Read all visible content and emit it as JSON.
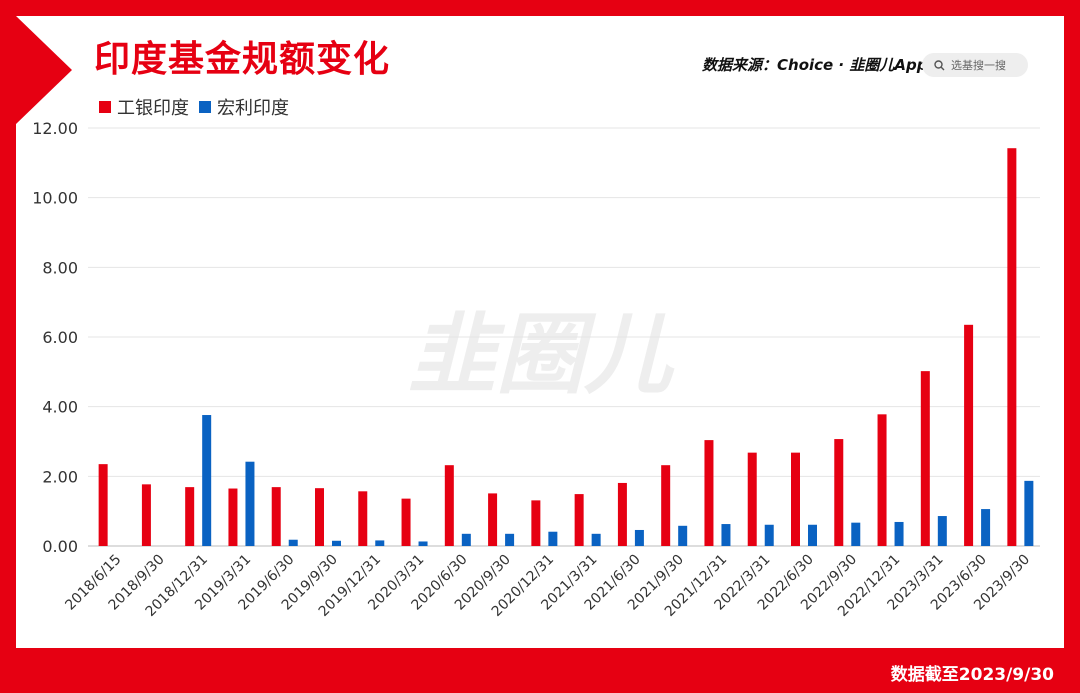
{
  "title": "印度基金规额变化",
  "source_label": "数据来源：Choice · 韭圈儿App",
  "search_placeholder": "选基搜一搜",
  "footer_note": "数据截至2023/9/30",
  "watermark": "韭圈儿",
  "colors": {
    "brand": "#e60012",
    "series1": "#e60012",
    "series2": "#0a62c2"
  },
  "chart_data": {
    "type": "bar",
    "categories": [
      "2018/6/15",
      "2018/9/30",
      "2018/12/31",
      "2019/3/31",
      "2019/6/30",
      "2019/9/30",
      "2019/12/31",
      "2020/3/31",
      "2020/6/30",
      "2020/9/30",
      "2020/12/31",
      "2021/3/31",
      "2021/6/30",
      "2021/9/30",
      "2021/12/31",
      "2022/3/31",
      "2022/6/30",
      "2022/9/30",
      "2022/12/31",
      "2023/3/31",
      "2023/6/30",
      "2023/9/30"
    ],
    "series": [
      {
        "name": "工银印度",
        "values": [
          2.35,
          1.77,
          1.69,
          1.65,
          1.69,
          1.66,
          1.57,
          1.36,
          2.32,
          1.51,
          1.31,
          1.49,
          1.81,
          2.32,
          3.04,
          2.68,
          2.68,
          3.07,
          3.78,
          5.02,
          6.35,
          11.42
        ]
      },
      {
        "name": "宏利印度",
        "values": [
          null,
          null,
          3.76,
          2.42,
          0.18,
          0.15,
          0.16,
          0.13,
          0.35,
          0.35,
          0.41,
          0.35,
          0.46,
          0.58,
          0.63,
          0.61,
          0.61,
          0.67,
          0.69,
          0.86,
          1.06,
          1.87
        ]
      }
    ],
    "yticks": [
      "0.00",
      "2.00",
      "4.00",
      "6.00",
      "8.00",
      "10.00",
      "12.00"
    ],
    "ylim": [
      0,
      12
    ],
    "grid": true,
    "legend_position": "top-left"
  }
}
